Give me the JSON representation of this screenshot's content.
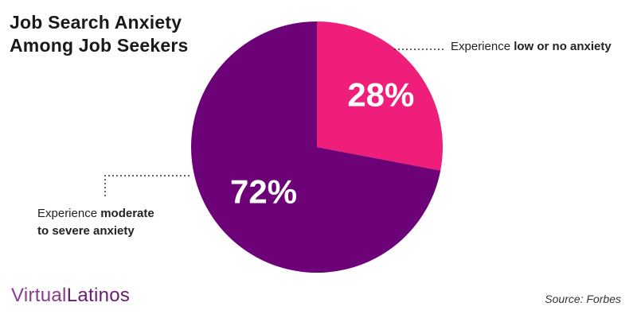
{
  "title": {
    "line1": "Job Search Anxiety",
    "line2": "Among Job Seekers"
  },
  "callouts": {
    "low": {
      "prefix": "Experience ",
      "bold": "low or no anxiety"
    },
    "moderate": {
      "prefix": "Experience ",
      "bold1": "moderate",
      "line2_bold": "to severe anxiety"
    }
  },
  "logo": {
    "part1": "Virtual",
    "part2": "Latinos"
  },
  "source": "Source: Forbes",
  "colors": {
    "low": "#ee1e7a",
    "moderate": "#6d0178",
    "label": "#ffffff"
  },
  "chart_data": {
    "type": "pie",
    "slices": [
      {
        "label": "Experience low or no anxiety",
        "value": 28,
        "display": "28%",
        "color": "#ee1e7a"
      },
      {
        "label": "Experience moderate to severe anxiety",
        "value": 72,
        "display": "72%",
        "color": "#6d0178"
      }
    ],
    "start_angle": "top",
    "direction": "clockwise"
  }
}
